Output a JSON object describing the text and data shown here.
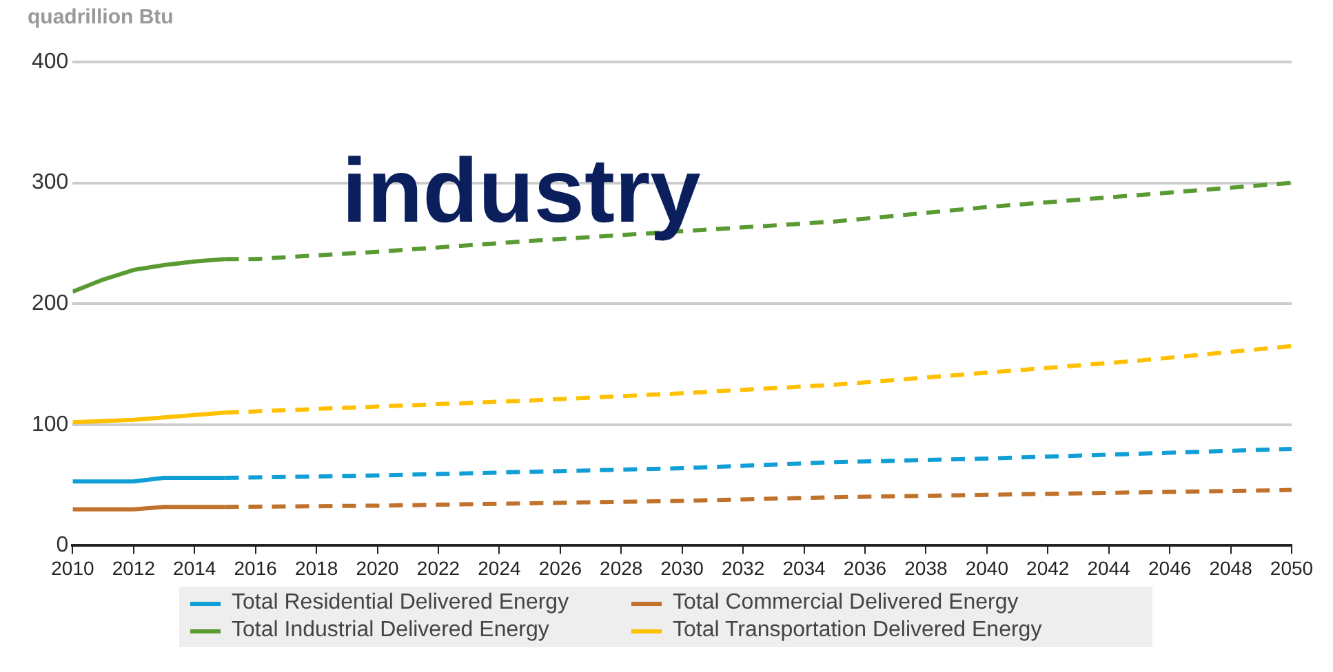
{
  "chart_data": {
    "type": "line",
    "ylabel": "quadrillion Btu",
    "annotations": [
      "industry"
    ],
    "xlim": [
      2010,
      2050
    ],
    "xticks": [
      2010,
      2012,
      2014,
      2016,
      2018,
      2020,
      2022,
      2024,
      2026,
      2028,
      2030,
      2032,
      2034,
      2036,
      2038,
      2040,
      2042,
      2044,
      2046,
      2048,
      2050
    ],
    "ylim": [
      0,
      400
    ],
    "yticks": [
      0,
      100,
      200,
      300,
      400
    ],
    "grid": "y",
    "legend": "bottom",
    "marker": "none",
    "series": [
      {
        "name": "Total Residential Delivered Energy",
        "color": "#0f9ed5",
        "line_style": "solid",
        "x": [
          2010,
          2011,
          2012,
          2013,
          2014,
          2015
        ],
        "values": [
          53,
          53,
          53,
          56,
          56,
          56
        ]
      },
      {
        "name": "Total Commercial Delivered Energy",
        "color": "#c0712b",
        "line_style": "solid",
        "x": [
          2010,
          2011,
          2012,
          2013,
          2014,
          2015
        ],
        "values": [
          30,
          30,
          30,
          32,
          32,
          32
        ]
      },
      {
        "name": "Total Industrial Delivered Energy",
        "color": "#5a9a32",
        "line_style": "solid",
        "x": [
          2010,
          2011,
          2012,
          2013,
          2014,
          2015
        ],
        "values": [
          210,
          220,
          228,
          232,
          235,
          237
        ]
      },
      {
        "name": "Total Transportation Delivered Energy",
        "color": "#ffc000",
        "line_style": "solid",
        "x": [
          2010,
          2011,
          2012,
          2013,
          2014,
          2015
        ],
        "values": [
          102,
          103,
          104,
          106,
          108,
          110
        ]
      },
      {
        "color": "#0f9ed5",
        "line_style": "dashed",
        "x": [
          2015,
          2020,
          2025,
          2030,
          2035,
          2040,
          2045,
          2050
        ],
        "values": [
          56,
          58,
          61,
          64,
          69,
          72,
          76,
          80
        ]
      },
      {
        "color": "#c0712b",
        "line_style": "dashed",
        "x": [
          2015,
          2020,
          2025,
          2030,
          2035,
          2040,
          2045,
          2050
        ],
        "values": [
          32,
          33,
          35,
          37,
          40,
          42,
          44,
          46
        ]
      },
      {
        "color": "#5a9a32",
        "line_style": "dashed",
        "x": [
          2015,
          2016,
          2020,
          2025,
          2030,
          2035,
          2040,
          2045,
          2050
        ],
        "values": [
          237,
          237,
          243,
          252,
          260,
          268,
          280,
          290,
          300
        ]
      },
      {
        "color": "#ffc000",
        "line_style": "dashed",
        "x": [
          2015,
          2020,
          2025,
          2030,
          2035,
          2040,
          2045,
          2050
        ],
        "values": [
          110,
          115,
          120,
          126,
          133,
          143,
          153,
          165
        ]
      }
    ]
  }
}
